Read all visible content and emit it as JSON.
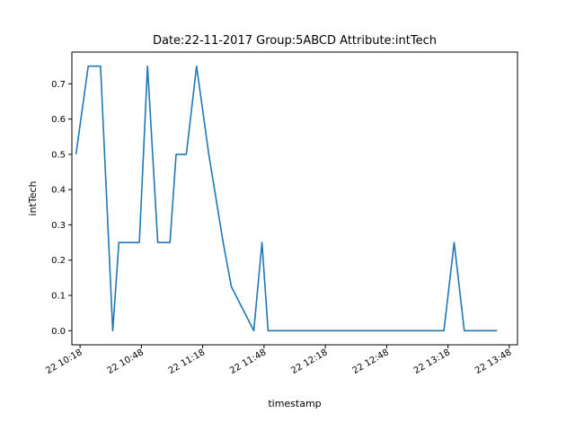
{
  "chart_data": {
    "type": "line",
    "title": "Date:22-11-2017  Group:5ABCD Attribute:intTech",
    "xlabel": "timestamp",
    "ylabel": "intTech",
    "x_format": "time",
    "xlim": [
      "10:14",
      "13:52"
    ],
    "ylim": [
      -0.04,
      0.79
    ],
    "x_ticks": [
      "22 10:18",
      "22 10:48",
      "22 11:18",
      "22 11:48",
      "22 12:18",
      "22 12:48",
      "22 13:18",
      "22 13:48"
    ],
    "y_ticks": [
      "0.0",
      "0.1",
      "0.2",
      "0.3",
      "0.4",
      "0.5",
      "0.6",
      "0.7"
    ],
    "grid": false,
    "series_color": "#1f77b4",
    "series": [
      {
        "x": [
          "10:16",
          "10:22",
          "10:28",
          "10:34",
          "10:37",
          "10:43",
          "10:47",
          "10:51",
          "10:56",
          "11:00",
          "11:02",
          "11:05",
          "11:10",
          "11:15",
          "11:21",
          "11:28",
          "11:32",
          "11:43",
          "11:47",
          "11:50",
          "13:16",
          "13:21",
          "13:26",
          "13:42"
        ],
        "y": [
          0.5,
          0.75,
          0.75,
          0.0,
          0.25,
          0.25,
          0.25,
          0.75,
          0.25,
          0.25,
          0.25,
          0.5,
          0.5,
          0.75,
          0.5,
          0.25,
          0.125,
          0.0,
          0.25,
          0.0,
          0.0,
          0.25,
          0.0,
          0.0
        ]
      }
    ]
  }
}
